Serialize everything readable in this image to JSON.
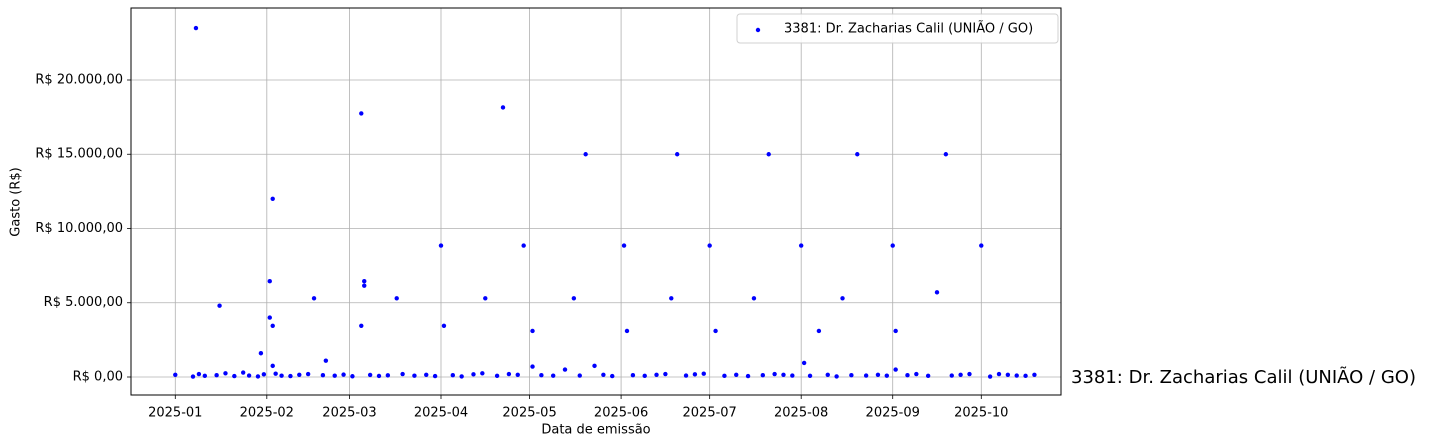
{
  "chart_data": {
    "type": "scatter",
    "xlabel": "Data de emissão",
    "ylabel": "Gasto (R$)",
    "annotation": "3381: Dr. Zacharias Calil (UNIÃO / GO)",
    "xlim": [
      20074,
      20389
    ],
    "ylim": [
      -1212,
      24848
    ],
    "xticks": [
      {
        "value": 20089,
        "label": "2025-01"
      },
      {
        "value": 20120,
        "label": "2025-02"
      },
      {
        "value": 20148,
        "label": "2025-03"
      },
      {
        "value": 20179,
        "label": "2025-04"
      },
      {
        "value": 20209,
        "label": "2025-05"
      },
      {
        "value": 20240,
        "label": "2025-06"
      },
      {
        "value": 20270,
        "label": "2025-07"
      },
      {
        "value": 20301,
        "label": "2025-08"
      },
      {
        "value": 20332,
        "label": "2025-09"
      },
      {
        "value": 20362,
        "label": "2025-10"
      }
    ],
    "yticks": [
      {
        "value": 0,
        "label": "R$ 0,00"
      },
      {
        "value": 5000,
        "label": "R$ 5.000,00"
      },
      {
        "value": 10000,
        "label": "R$ 10.000,00"
      },
      {
        "value": 15000,
        "label": "R$ 15.000,00"
      },
      {
        "value": 20000,
        "label": "R$ 20.000,00"
      }
    ],
    "grid": true,
    "legend": "upper right",
    "series": [
      {
        "name": "3381: Dr. Zacharias Calil (UNIÃO / GO)",
        "color": "#0000ff",
        "x": [
          20096,
          20104,
          20118,
          20121,
          20121,
          20122,
          20122,
          20122,
          20136,
          20140,
          20152,
          20152,
          20153,
          20153,
          20164,
          20179,
          20180,
          20194,
          20200,
          20207,
          20210,
          20210,
          20224,
          20228,
          20231,
          20241,
          20242,
          20257,
          20259,
          20270,
          20272,
          20285,
          20290,
          20301,
          20302,
          20307,
          20315,
          20320,
          20332,
          20333,
          20333,
          20347,
          20350,
          20362,
          20089,
          20095,
          20097,
          20099,
          20103,
          20106,
          20109,
          20112,
          20114,
          20117,
          20119,
          20123,
          20125,
          20128,
          20131,
          20134,
          20139,
          20143,
          20146,
          20149,
          20155,
          20158,
          20161,
          20166,
          20170,
          20174,
          20177,
          20183,
          20186,
          20190,
          20193,
          20198,
          20202,
          20205,
          20213,
          20217,
          20221,
          20226,
          20234,
          20237,
          20244,
          20248,
          20252,
          20255,
          20262,
          20265,
          20268,
          20275,
          20279,
          20283,
          20288,
          20292,
          20295,
          20298,
          20304,
          20310,
          20313,
          20318,
          20323,
          20327,
          20330,
          20337,
          20340,
          20344,
          20352,
          20355,
          20358,
          20365,
          20368,
          20371,
          20374,
          20377,
          20380
        ],
        "values": [
          23500,
          4800,
          1600,
          6450,
          4000,
          3450,
          12000,
          750,
          5300,
          1100,
          17750,
          3450,
          6450,
          6150,
          5300,
          8850,
          3450,
          5300,
          18150,
          8850,
          3100,
          700,
          5300,
          15000,
          750,
          8850,
          3100,
          5300,
          15000,
          8850,
          3100,
          5300,
          15000,
          8850,
          950,
          3100,
          5300,
          15000,
          8850,
          3100,
          500,
          5700,
          15000,
          8850,
          150,
          30,
          200,
          80,
          120,
          250,
          60,
          300,
          100,
          40,
          180,
          220,
          90,
          60,
          150,
          200,
          120,
          90,
          160,
          50,
          140,
          70,
          110,
          200,
          90,
          150,
          60,
          120,
          40,
          180,
          250,
          80,
          200,
          150,
          120,
          90,
          500,
          100,
          150,
          60,
          120,
          80,
          150,
          200,
          100,
          180,
          220,
          80,
          150,
          60,
          120,
          200,
          150,
          100,
          80,
          150,
          40,
          120,
          100,
          150,
          90,
          120,
          200,
          80,
          100,
          150,
          200,
          30,
          200,
          150,
          100,
          80,
          150
        ]
      }
    ]
  }
}
